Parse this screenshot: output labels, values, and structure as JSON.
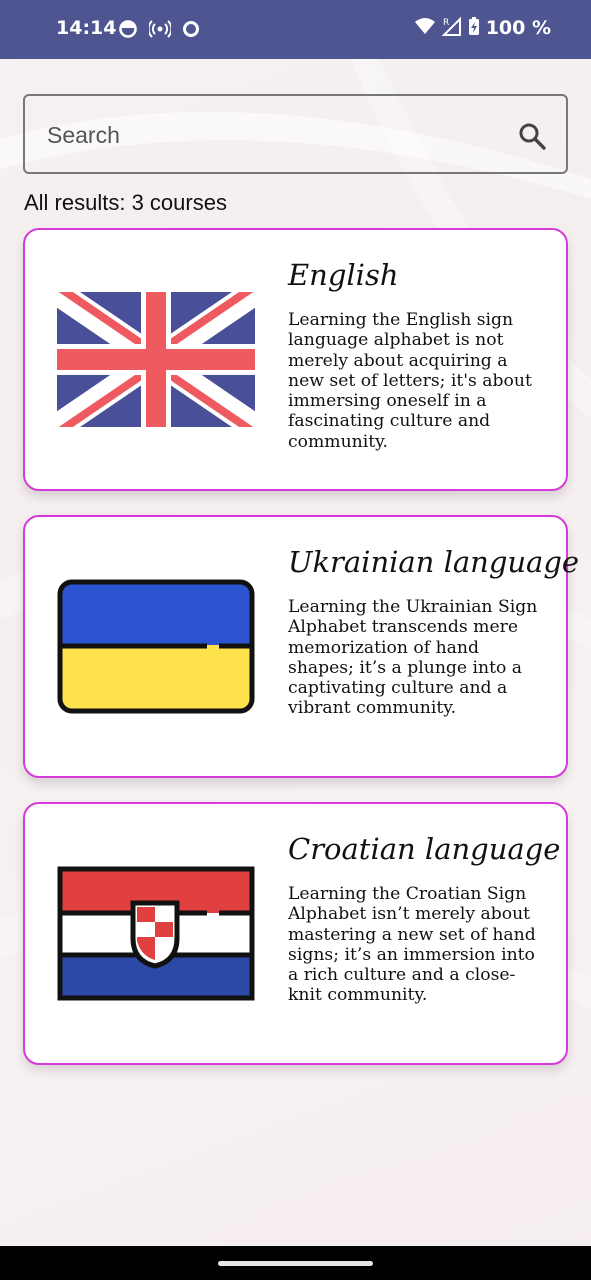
{
  "status_bar": {
    "time": "14:14",
    "battery": "100 %",
    "icons": [
      "data-saver-icon",
      "hotspot-icon",
      "circle-icon",
      "wifi-icon",
      "signal-icon",
      "battery-charging-icon"
    ]
  },
  "search": {
    "placeholder": "Search",
    "value": ""
  },
  "results_label": "All results: 3 courses",
  "courses": [
    {
      "title": "English",
      "description": "Learning the English sign language alphabet is not merely about acquiring a new set of letters; it's about immersing oneself in a fascinating culture and community.",
      "flag_icon": "uk-flag-icon"
    },
    {
      "title": "Ukrainian language",
      "description": "Learning the Ukrainian Sign Alphabet transcends mere memorization of hand shapes; it’s a plunge into a captivating culture and a vibrant community.",
      "flag_icon": "ukraine-flag-icon"
    },
    {
      "title": "Croatian language",
      "description": "Learning the Croatian Sign Alphabet isn’t merely about mastering a new set of hand signs; it’s an immersion into a rich culture and a close-knit community.",
      "flag_icon": "croatia-flag-icon"
    }
  ],
  "colors": {
    "status_bar": "#4f5590",
    "card_border": "#d63ad8",
    "uk_blue": "#4a4f9a",
    "uk_red": "#ee5a5f",
    "ua_blue": "#2c54d1",
    "ua_yellow": "#fde14d",
    "hr_red": "#e0403f",
    "hr_blue": "#2c49a8"
  }
}
